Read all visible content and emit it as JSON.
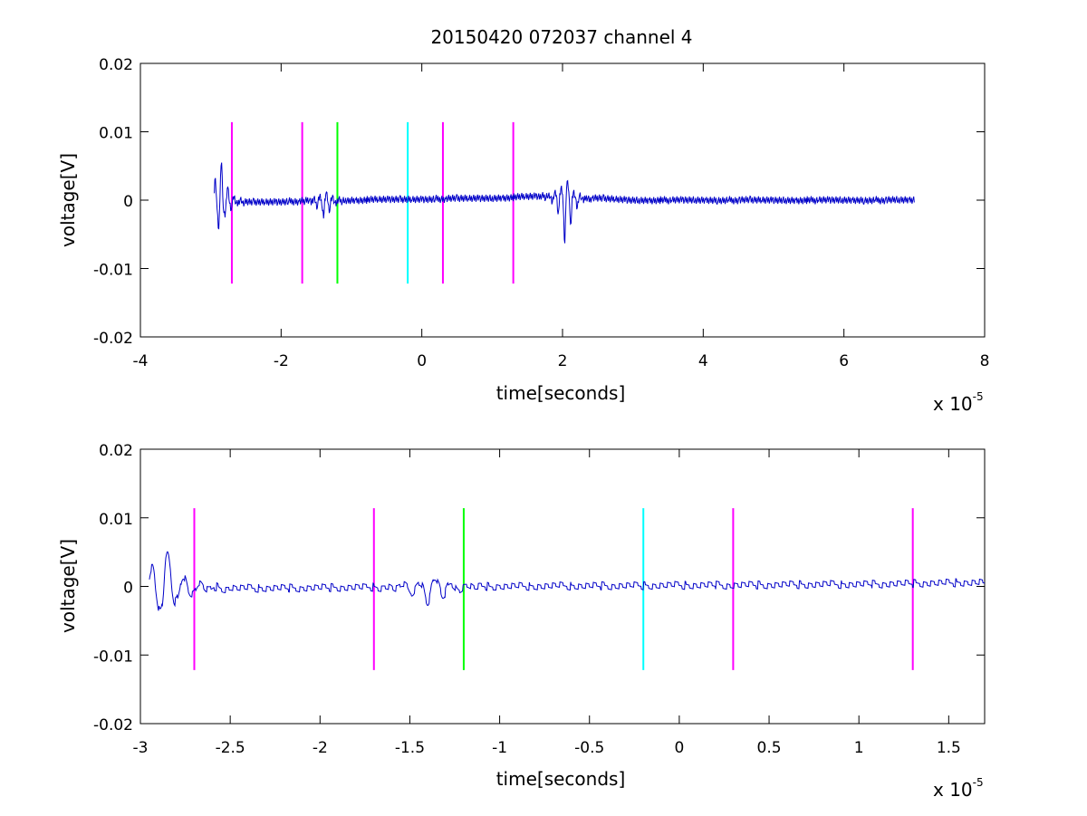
{
  "chart_data": [
    {
      "type": "line",
      "title": "20150420 072037 channel 4",
      "xlabel": "time[seconds]",
      "ylabel": "voltage[V]",
      "x_exponent_base": "x 10",
      "x_exponent_power": "-5",
      "xlim": [
        -4,
        8
      ],
      "ylim": [
        -0.02,
        0.02
      ],
      "xticks": [
        -4,
        -2,
        0,
        2,
        4,
        6,
        8
      ],
      "xtick_labels": [
        "-4",
        "-2",
        "0",
        "2",
        "4",
        "6",
        "8"
      ],
      "yticks": [
        -0.02,
        -0.01,
        0,
        0.01,
        0.02
      ],
      "ytick_labels": [
        "-0.02",
        "-0.01",
        "0",
        "0.01",
        "0.02"
      ],
      "signal": {
        "color": "#0000c8",
        "x_range": [
          -2.95,
          7.0
        ],
        "bursts": [
          {
            "center": -2.87,
            "peak": 0.0102,
            "trough": -0.0063
          },
          {
            "center": -1.38,
            "peak": 0.002,
            "trough": -0.0042
          },
          {
            "center": 2.05,
            "peak": 0.004,
            "trough": -0.0112
          }
        ],
        "drift": [
          [
            -3.0,
            -0.0004
          ],
          [
            -1.0,
            0.0
          ],
          [
            1.0,
            0.0003
          ],
          [
            1.8,
            0.0006
          ],
          [
            3.0,
            0.0
          ],
          [
            6.0,
            0.0
          ],
          [
            7.0,
            0.0
          ]
        ]
      },
      "markers": [
        {
          "x": -2.7,
          "color": "#ff00ff"
        },
        {
          "x": -1.7,
          "color": "#ff00ff"
        },
        {
          "x": -1.2,
          "color": "#00ff00"
        },
        {
          "x": -0.2,
          "color": "#00ffff"
        },
        {
          "x": 0.3,
          "color": "#ff00ff"
        },
        {
          "x": 1.3,
          "color": "#ff00ff"
        }
      ],
      "marker_ylim": [
        -0.0122,
        0.0114
      ]
    },
    {
      "type": "line",
      "title": "",
      "xlabel": "time[seconds]",
      "ylabel": "voltage[V]",
      "x_exponent_base": "x 10",
      "x_exponent_power": "-5",
      "xlim": [
        -3.0,
        1.7
      ],
      "ylim": [
        -0.02,
        0.02
      ],
      "xticks": [
        -3,
        -2.5,
        -2,
        -1.5,
        -1,
        -0.5,
        0,
        0.5,
        1,
        1.5
      ],
      "xtick_labels": [
        "-3",
        "-2.5",
        "-2",
        "-1.5",
        "-1",
        "-0.5",
        "0",
        "0.5",
        "1",
        "1.5"
      ],
      "yticks": [
        -0.02,
        -0.01,
        0,
        0.01,
        0.02
      ],
      "ytick_labels": [
        "-0.02",
        "-0.01",
        "0",
        "0.01",
        "0.02"
      ],
      "signal": {
        "color": "#0000c8",
        "x_range": [
          -2.95,
          1.7
        ],
        "bursts": [
          {
            "center": -2.87,
            "peak": 0.0102,
            "trough": -0.0063
          },
          {
            "center": -1.38,
            "peak": 0.002,
            "trough": -0.0042
          }
        ],
        "drift": [
          [
            -3.0,
            -0.0004
          ],
          [
            -1.0,
            0.0
          ],
          [
            1.0,
            0.0003
          ],
          [
            1.7,
            0.0006
          ]
        ]
      },
      "markers": [
        {
          "x": -2.7,
          "color": "#ff00ff"
        },
        {
          "x": -1.7,
          "color": "#ff00ff"
        },
        {
          "x": -1.2,
          "color": "#00ff00"
        },
        {
          "x": -0.2,
          "color": "#00ffff"
        },
        {
          "x": 0.3,
          "color": "#ff00ff"
        },
        {
          "x": 1.3,
          "color": "#ff00ff"
        }
      ],
      "marker_ylim": [
        -0.0122,
        0.0114
      ]
    }
  ]
}
